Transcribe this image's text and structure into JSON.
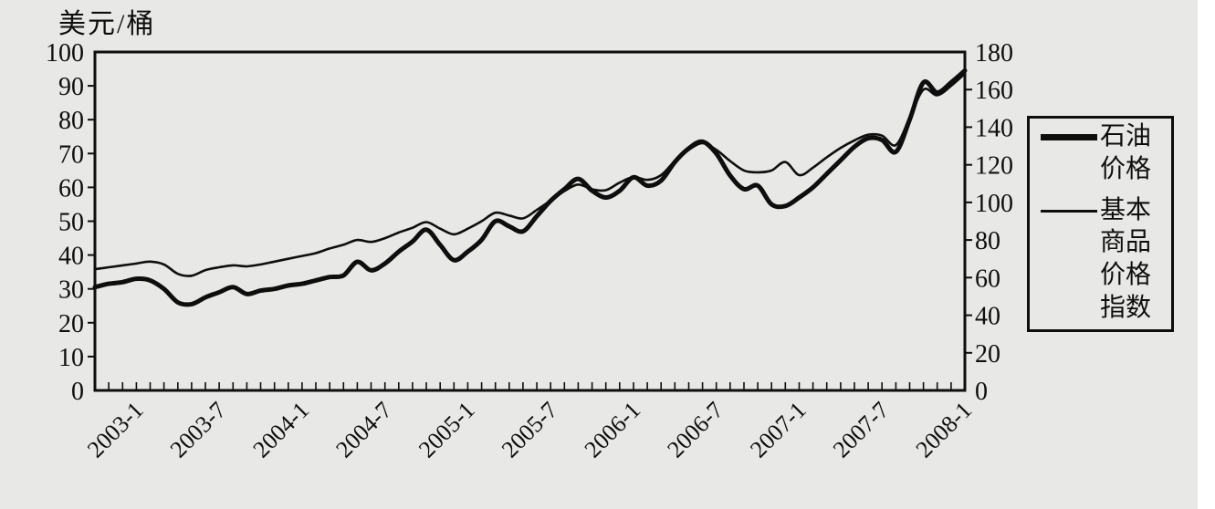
{
  "colors": {
    "background": "#e8e8e6",
    "ink": "#0e0e0e",
    "paper_edge": "#ffffff"
  },
  "chart_data": {
    "type": "line",
    "title": "",
    "left_axis": {
      "unit": "美元/桶",
      "min": 0,
      "max": 100,
      "tick_step": 10,
      "tick_labels": [
        "0",
        "10",
        "20",
        "30",
        "40",
        "50",
        "60",
        "70",
        "80",
        "90",
        "100"
      ]
    },
    "right_axis": {
      "min": 0,
      "max": 180,
      "tick_step": 20,
      "tick_labels": [
        "0",
        "20",
        "40",
        "60",
        "80",
        "100",
        "120",
        "140",
        "160",
        "180"
      ]
    },
    "x_axis": {
      "unit": "month",
      "minor_tick": "monthly",
      "tick_labels": [
        "2003-1",
        "2003-7",
        "2004-1",
        "2004-7",
        "2005-1",
        "2005-7",
        "2006-1",
        "2006-7",
        "2007-1",
        "2007-7",
        "2008-1"
      ],
      "label_month_indices": [
        3,
        9,
        15,
        21,
        27,
        33,
        39,
        45,
        51,
        57,
        63
      ],
      "months_total": 64
    },
    "legend": {
      "position": "right",
      "entries": [
        "石油价格",
        "基本商品价格指数"
      ]
    },
    "series": [
      {
        "name": "石油价格",
        "axis": "left",
        "line": "thick",
        "values": [
          30.5,
          31.5,
          32,
          33,
          32.5,
          30,
          26,
          25.5,
          27.5,
          29,
          30.5,
          28.5,
          29.5,
          30,
          31,
          31.5,
          32.5,
          33.5,
          34,
          38,
          35.5,
          37.5,
          41,
          44,
          47.5,
          43,
          38.5,
          41,
          44.5,
          50,
          48.5,
          47,
          51.5,
          56,
          59.5,
          62.5,
          59,
          57,
          59,
          63,
          60.5,
          62,
          67.5,
          71.5,
          73.5,
          70,
          63.5,
          59.5,
          60.5,
          55,
          54.5,
          57,
          60,
          64,
          68,
          72,
          74.5,
          74,
          70.5,
          80,
          91,
          88,
          91,
          94.5
        ]
      },
      {
        "name": "基本商品价格指数",
        "axis": "right",
        "line": "thin",
        "values": [
          64.5,
          65.5,
          66.5,
          67.5,
          68.5,
          67,
          62,
          61,
          64,
          65.5,
          66.5,
          66,
          67,
          68.5,
          70,
          71.5,
          73,
          75.5,
          77.5,
          80,
          79,
          81,
          84,
          86.5,
          89.5,
          86,
          83,
          86,
          90,
          94.5,
          93,
          91.5,
          96,
          101,
          106,
          109.5,
          107,
          106.5,
          110.5,
          113.5,
          112,
          114.5,
          122,
          128,
          131.5,
          128,
          122,
          117,
          116,
          117,
          121.5,
          114.5,
          118.5,
          124,
          129,
          133,
          136,
          135.5,
          130.5,
          145,
          160,
          157,
          162,
          168.5
        ]
      }
    ]
  }
}
